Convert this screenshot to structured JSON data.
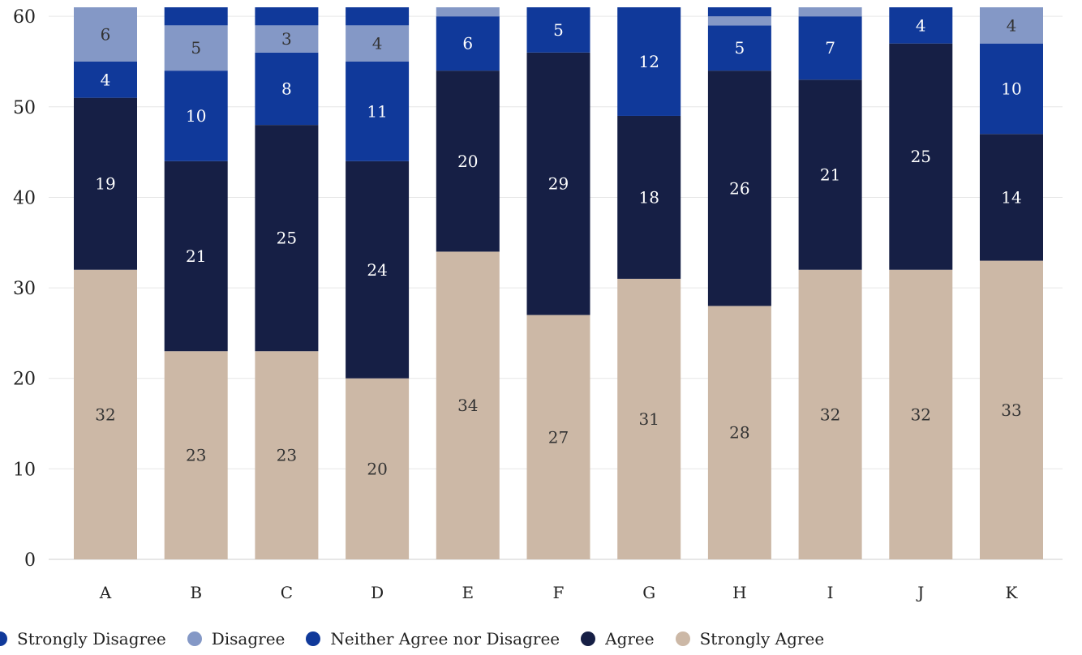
{
  "chart_data": {
    "type": "bar",
    "stacked": true,
    "categories": [
      "A",
      "B",
      "C",
      "D",
      "E",
      "F",
      "G",
      "H",
      "I",
      "J",
      "K"
    ],
    "ylim": [
      0,
      61
    ],
    "yticks": [
      0,
      10,
      20,
      30,
      40,
      50,
      60
    ],
    "grid": true,
    "legend_placement": "bottom",
    "series": [
      {
        "name": "Strongly Agree",
        "color": "#ccb8a6",
        "label_color": "#333333",
        "values": [
          32,
          23,
          23,
          20,
          34,
          27,
          31,
          28,
          32,
          32,
          33
        ]
      },
      {
        "name": "Agree",
        "color": "#161f45",
        "label_color": "#ffffff",
        "values": [
          19,
          21,
          25,
          24,
          20,
          29,
          18,
          26,
          21,
          25,
          14
        ]
      },
      {
        "name": "Neither Agree nor Disagree",
        "color": "#10399a",
        "label_color": "#ffffff",
        "values": [
          4,
          10,
          8,
          11,
          6,
          5,
          12,
          5,
          7,
          4,
          10
        ]
      },
      {
        "name": "Disagree",
        "color": "#8498c6",
        "label_color": "#333333",
        "values": [
          6,
          5,
          3,
          4,
          1,
          0,
          0,
          1,
          1,
          0,
          4
        ]
      },
      {
        "name": "Strongly Disagree",
        "color": "#10399a",
        "label_color": "#ffffff",
        "values": [
          0,
          2,
          2,
          2,
          0,
          0,
          0,
          1,
          0,
          0,
          0
        ]
      }
    ],
    "legend_order": [
      "Strongly Disagree",
      "Disagree",
      "Neither Agree nor Disagree",
      "Agree",
      "Strongly Agree"
    ]
  }
}
